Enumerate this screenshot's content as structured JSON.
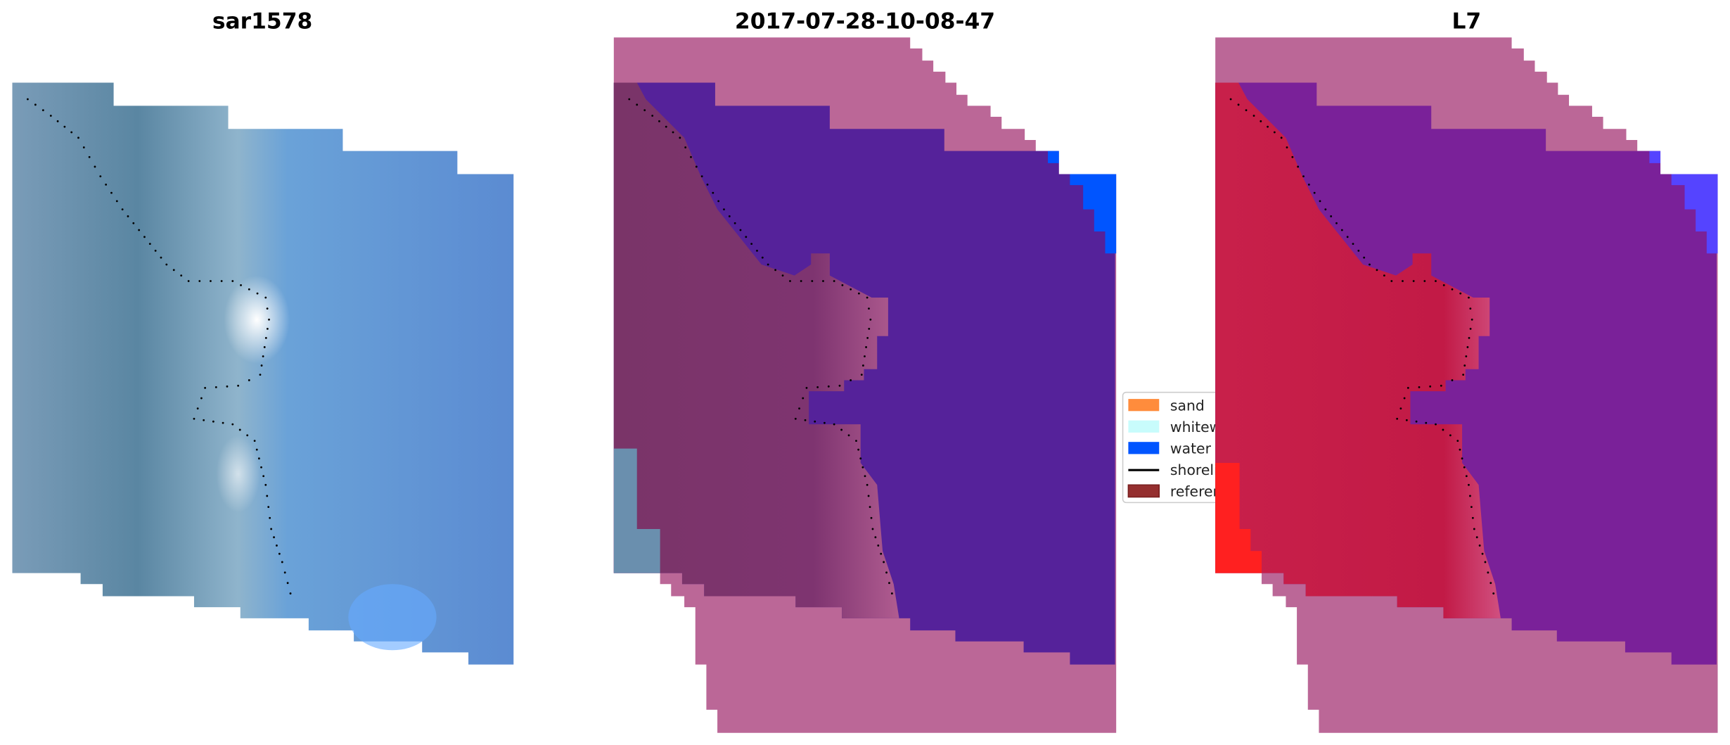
{
  "panels": [
    {
      "title": "sar1578"
    },
    {
      "title": "2017-07-28-10-08-47"
    },
    {
      "title": "L7"
    }
  ],
  "legend": {
    "placement": "center",
    "items": [
      {
        "label": "sand",
        "color": "#ff8c3c",
        "kind": "patch"
      },
      {
        "label": "whitewater",
        "color": "#c8fcfc",
        "kind": "patch"
      },
      {
        "label": "water",
        "color": "#0055ff",
        "kind": "patch"
      },
      {
        "label": "shoreline",
        "color": "#000000",
        "kind": "line"
      },
      {
        "label": "reference",
        "color": "#952f2f",
        "kind": "patch"
      }
    ]
  },
  "colors": {
    "nodata_overlay": "#bb6797",
    "classified_water": "#55229a",
    "classified_land": "#7e3470",
    "l7_land": "#c41a48",
    "l7_water": "#7a2199",
    "l7_water_blue": "#5544ff",
    "sar_water": "#5b8fd6",
    "sar_land": "#5a86a2"
  }
}
